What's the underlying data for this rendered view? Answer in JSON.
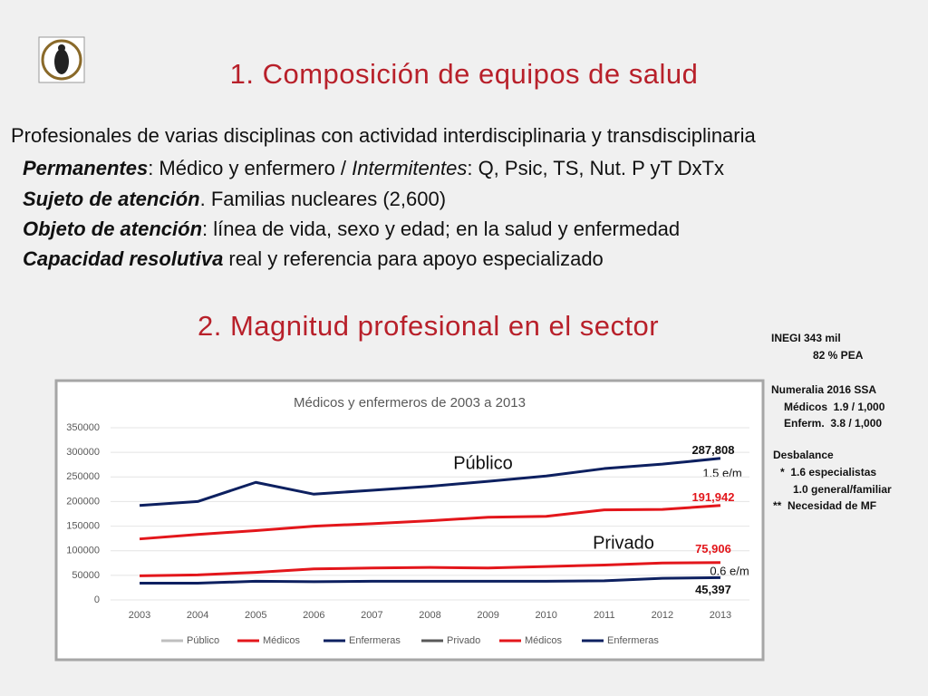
{
  "slide": {
    "title1": "1. Composición de equipos de salud",
    "intro": "Profesionales de varias disciplinas con actividad interdisciplinaria y transdisciplinaria",
    "lines": [
      [
        "Permanentes",
        ": Médico y enfermero / ",
        "Intermitentes",
        ": Q, Psic, TS, Nut. P yT DxTx"
      ],
      [
        "Sujeto de atención",
        ". Familias nucleares (2,600)"
      ],
      [
        "Objeto de atención",
        ": línea de vida, sexo y edad; en la salud y enfermedad"
      ],
      [
        "Capacidad resolutiva",
        " real y referencia para apoyo especializado"
      ]
    ],
    "title2": "2. Magnitud profesional en el sector",
    "notes": [
      "INEGI 343 mil",
      "82 % PEA",
      "Numeralia 2016 SSA",
      "Médicos  1.9 / 1,000",
      "Enferm.  3.8 / 1,000",
      "Desbalance",
      "*  1.6 especialistas",
      "1.0 general/familiar",
      "**  Necesidad de MF"
    ]
  },
  "chart_data": {
    "type": "line",
    "title": "Médicos y enfermeros  de 2003 a 2013",
    "categories": [
      "2003",
      "2004",
      "2005",
      "2006",
      "2007",
      "2008",
      "2009",
      "2010",
      "2011",
      "2012",
      "2013"
    ],
    "ylim": [
      0,
      350000
    ],
    "yticks": [
      0,
      50000,
      100000,
      150000,
      200000,
      250000,
      300000,
      350000
    ],
    "grid": true,
    "series": [
      {
        "name": "Público",
        "color": "#bfbfbf",
        "values": [
          null,
          null,
          null,
          null,
          null,
          null,
          null,
          null,
          null,
          null,
          null
        ]
      },
      {
        "name": "Médicos",
        "color": "#e3161b",
        "values": [
          124000,
          133000,
          141000,
          150000,
          155000,
          161000,
          168000,
          170000,
          183000,
          184000,
          191942
        ],
        "value_labels": [
          null,
          null,
          null,
          null,
          null,
          null,
          null,
          null,
          null,
          null,
          "191,942"
        ]
      },
      {
        "name": "Enfermeras",
        "color": "#0d2060",
        "values": [
          192000,
          200000,
          239000,
          215000,
          223000,
          231000,
          241000,
          252000,
          267000,
          276000,
          287808
        ],
        "value_labels": [
          null,
          null,
          null,
          null,
          null,
          null,
          null,
          null,
          null,
          null,
          "287,808"
        ]
      },
      {
        "name": "Privado",
        "color": "#595959",
        "values": [
          null,
          null,
          null,
          null,
          null,
          null,
          null,
          null,
          null,
          null,
          null
        ]
      },
      {
        "name": "Médicos",
        "color": "#e3161b",
        "values": [
          49000,
          51000,
          56000,
          63000,
          65000,
          66000,
          65000,
          68000,
          71000,
          75000,
          75906
        ],
        "value_labels": [
          null,
          null,
          null,
          null,
          null,
          null,
          null,
          null,
          null,
          null,
          "75,906"
        ]
      },
      {
        "name": "Enfermeras",
        "color": "#0d2060",
        "values": [
          34000,
          34000,
          38000,
          37000,
          38000,
          38000,
          38000,
          38000,
          39000,
          44000,
          45397
        ],
        "value_labels": [
          null,
          null,
          null,
          null,
          null,
          null,
          null,
          null,
          null,
          null,
          "45,397"
        ]
      }
    ],
    "annotations": [
      "Público",
      "Privado",
      "1.5 e/m",
      "0.6 e/m"
    ]
  }
}
